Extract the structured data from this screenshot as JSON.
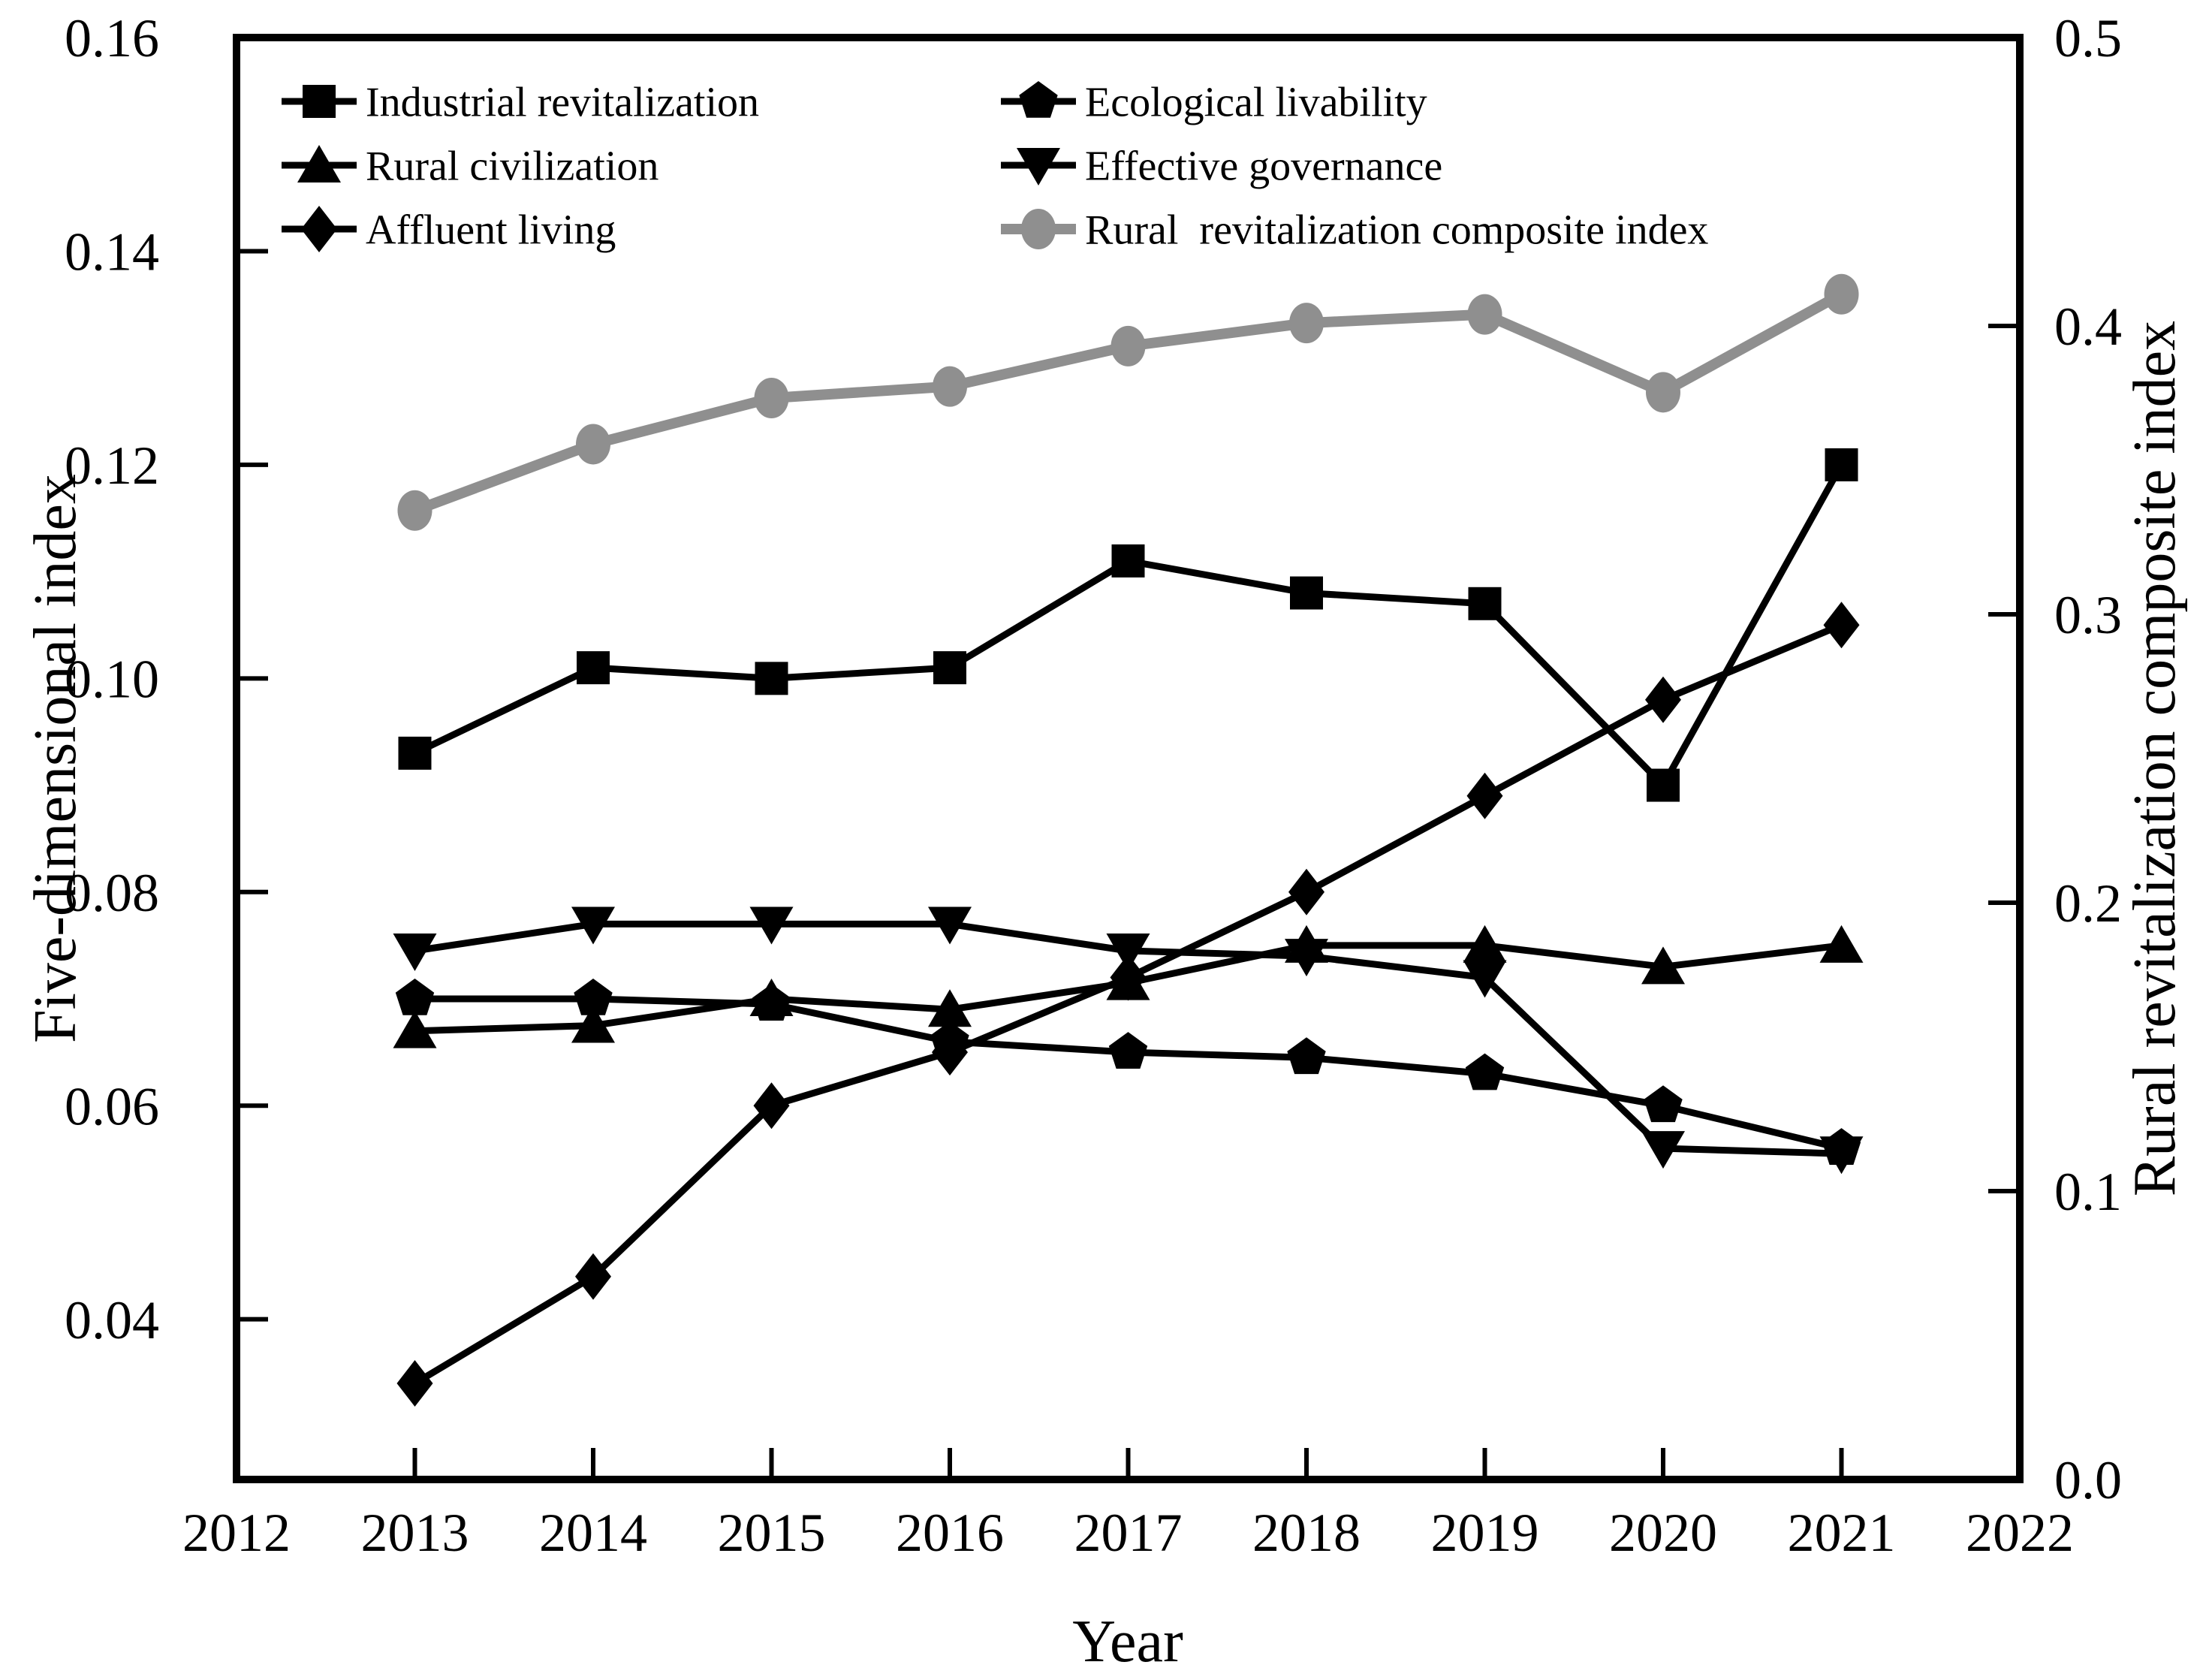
{
  "chart_data": {
    "type": "line",
    "title": "",
    "xlabel": "Year",
    "ylabel_left": "Five-dimensional index",
    "ylabel_right": "Rural revitalization composite index",
    "x_range": [
      2012,
      2022
    ],
    "left_range": [
      0.025,
      0.16
    ],
    "right_range": [
      0.0,
      0.5
    ],
    "x_ticks": [
      2012,
      2013,
      2014,
      2015,
      2016,
      2017,
      2018,
      2019,
      2020,
      2021,
      2022
    ],
    "x_tick_labels": [
      "2012",
      "2013",
      "2014",
      "2015",
      "2016",
      "2017",
      "2018",
      "2019",
      "2020",
      "2021",
      "2022"
    ],
    "left_ticks": [
      0.04,
      0.06,
      0.08,
      0.1,
      0.12,
      0.14,
      0.16
    ],
    "left_tick_labels": [
      "0.04",
      "0.06",
      "0.08",
      "0.10",
      "0.12",
      "0.14",
      "0.16"
    ],
    "right_ticks": [
      0.0,
      0.1,
      0.2,
      0.3,
      0.4,
      0.5
    ],
    "right_tick_labels": [
      "0.0",
      "0.1",
      "0.2",
      "0.3",
      "0.4",
      "0.5"
    ],
    "grid": false,
    "legend_position": "inside-top-left-two-columns",
    "colors": {
      "black_series": "#000000",
      "gray_series": "#8f8f8f"
    },
    "x": [
      2013,
      2014,
      2015,
      2016,
      2017,
      2018,
      2019,
      2020,
      2021
    ],
    "series": [
      {
        "name": "Industrial revitalization",
        "legend_label": "Industrial revitalization",
        "marker": "square",
        "axis": "left",
        "color": "#000000",
        "values": [
          0.093,
          0.101,
          0.1,
          0.101,
          0.111,
          0.108,
          0.107,
          0.09,
          0.12
        ]
      },
      {
        "name": "Ecological livability",
        "legend_label": "Ecological livability",
        "marker": "pentagon",
        "axis": "left",
        "color": "#000000",
        "values": [
          0.07,
          0.07,
          0.0695,
          0.066,
          0.065,
          0.0645,
          0.063,
          0.06,
          0.056
        ]
      },
      {
        "name": "Rural civilization",
        "legend_label": "Rural civilization",
        "marker": "triangle-up",
        "axis": "left",
        "color": "#000000",
        "values": [
          0.067,
          0.0675,
          0.07,
          0.069,
          0.0715,
          0.075,
          0.075,
          0.073,
          0.075
        ]
      },
      {
        "name": "Effective governance",
        "legend_label": "Effective governance",
        "marker": "triangle-down",
        "axis": "left",
        "color": "#000000",
        "values": [
          0.0745,
          0.077,
          0.077,
          0.077,
          0.0745,
          0.074,
          0.072,
          0.056,
          0.0555
        ]
      },
      {
        "name": "Affluent living",
        "legend_label": "Affluent living",
        "marker": "diamond",
        "axis": "left",
        "color": "#000000",
        "values": [
          0.034,
          0.044,
          0.06,
          0.065,
          0.072,
          0.08,
          0.089,
          0.098,
          0.105
        ]
      },
      {
        "name": "Rural revitalization composite index",
        "legend_label": "Rural  revitalization composite index",
        "marker": "circle",
        "axis": "right",
        "color": "#8f8f8f",
        "values": [
          0.336,
          0.359,
          0.375,
          0.379,
          0.393,
          0.401,
          0.404,
          0.377,
          0.411
        ]
      }
    ]
  }
}
